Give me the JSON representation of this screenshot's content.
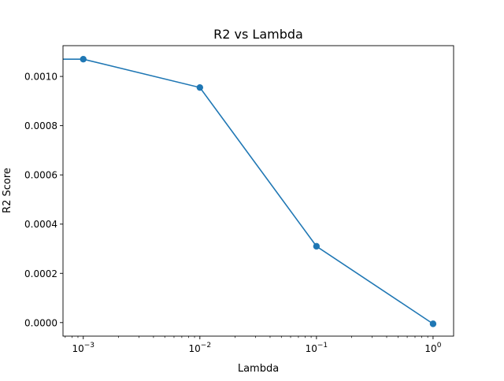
{
  "chart_data": {
    "type": "line",
    "title": "R2 vs Lambda",
    "xlabel": "Lambda",
    "ylabel": "R2 Score",
    "xscale": "log",
    "grid": false,
    "legend": "none",
    "line_color": "#1f77b4",
    "marker": "circle",
    "xlim": [
      0.00067,
      1.5
    ],
    "ylim": [
      -5.5e-05,
      0.001125
    ],
    "x_ticks": [
      {
        "value": 0.001,
        "base": "10",
        "exp": "−3"
      },
      {
        "value": 0.01,
        "base": "10",
        "exp": "−2"
      },
      {
        "value": 0.1,
        "base": "10",
        "exp": "−1"
      },
      {
        "value": 1,
        "base": "10",
        "exp": "0"
      }
    ],
    "y_ticks": [
      {
        "value": 0.0,
        "label": "0.0000"
      },
      {
        "value": 0.0002,
        "label": "0.0002"
      },
      {
        "value": 0.0004,
        "label": "0.0004"
      },
      {
        "value": 0.0006,
        "label": "0.0006"
      },
      {
        "value": 0.0008,
        "label": "0.0008"
      },
      {
        "value": 0.001,
        "label": "0.0010"
      }
    ],
    "line_extends_to_left_edge": true,
    "series": [
      {
        "x": [
          0.001,
          0.01,
          0.1,
          1
        ],
        "y": [
          0.00107,
          0.000955,
          0.00031,
          -5e-06
        ]
      }
    ]
  }
}
